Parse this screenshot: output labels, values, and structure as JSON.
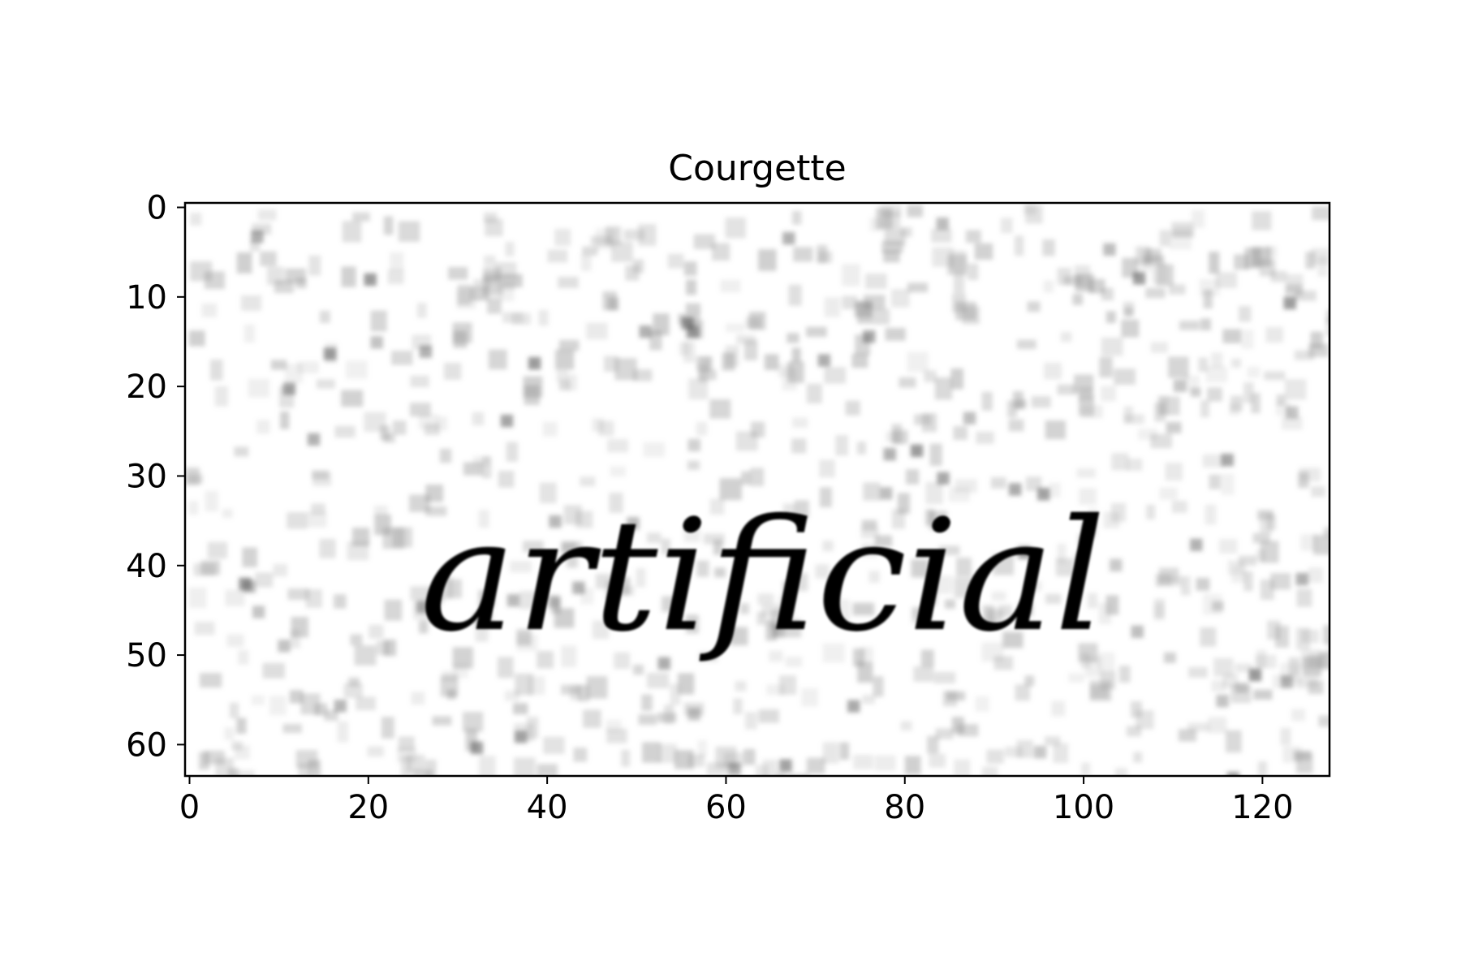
{
  "title": "Courgette",
  "image": {
    "word": "artificial",
    "background_color": "#ffffff",
    "text_color": "#050505",
    "noise_color": "#8c8c8c"
  },
  "x_axis": {
    "range": [
      -0.5,
      127.5
    ],
    "ticks": [
      0,
      20,
      40,
      60,
      80,
      100,
      120
    ],
    "tick_labels": [
      "0",
      "20",
      "40",
      "60",
      "80",
      "100",
      "120"
    ]
  },
  "y_axis": {
    "range": [
      -0.5,
      63.5
    ],
    "inverted": true,
    "ticks": [
      0,
      10,
      20,
      30,
      40,
      50,
      60
    ],
    "tick_labels": [
      "0",
      "10",
      "20",
      "30",
      "40",
      "50",
      "60"
    ]
  }
}
